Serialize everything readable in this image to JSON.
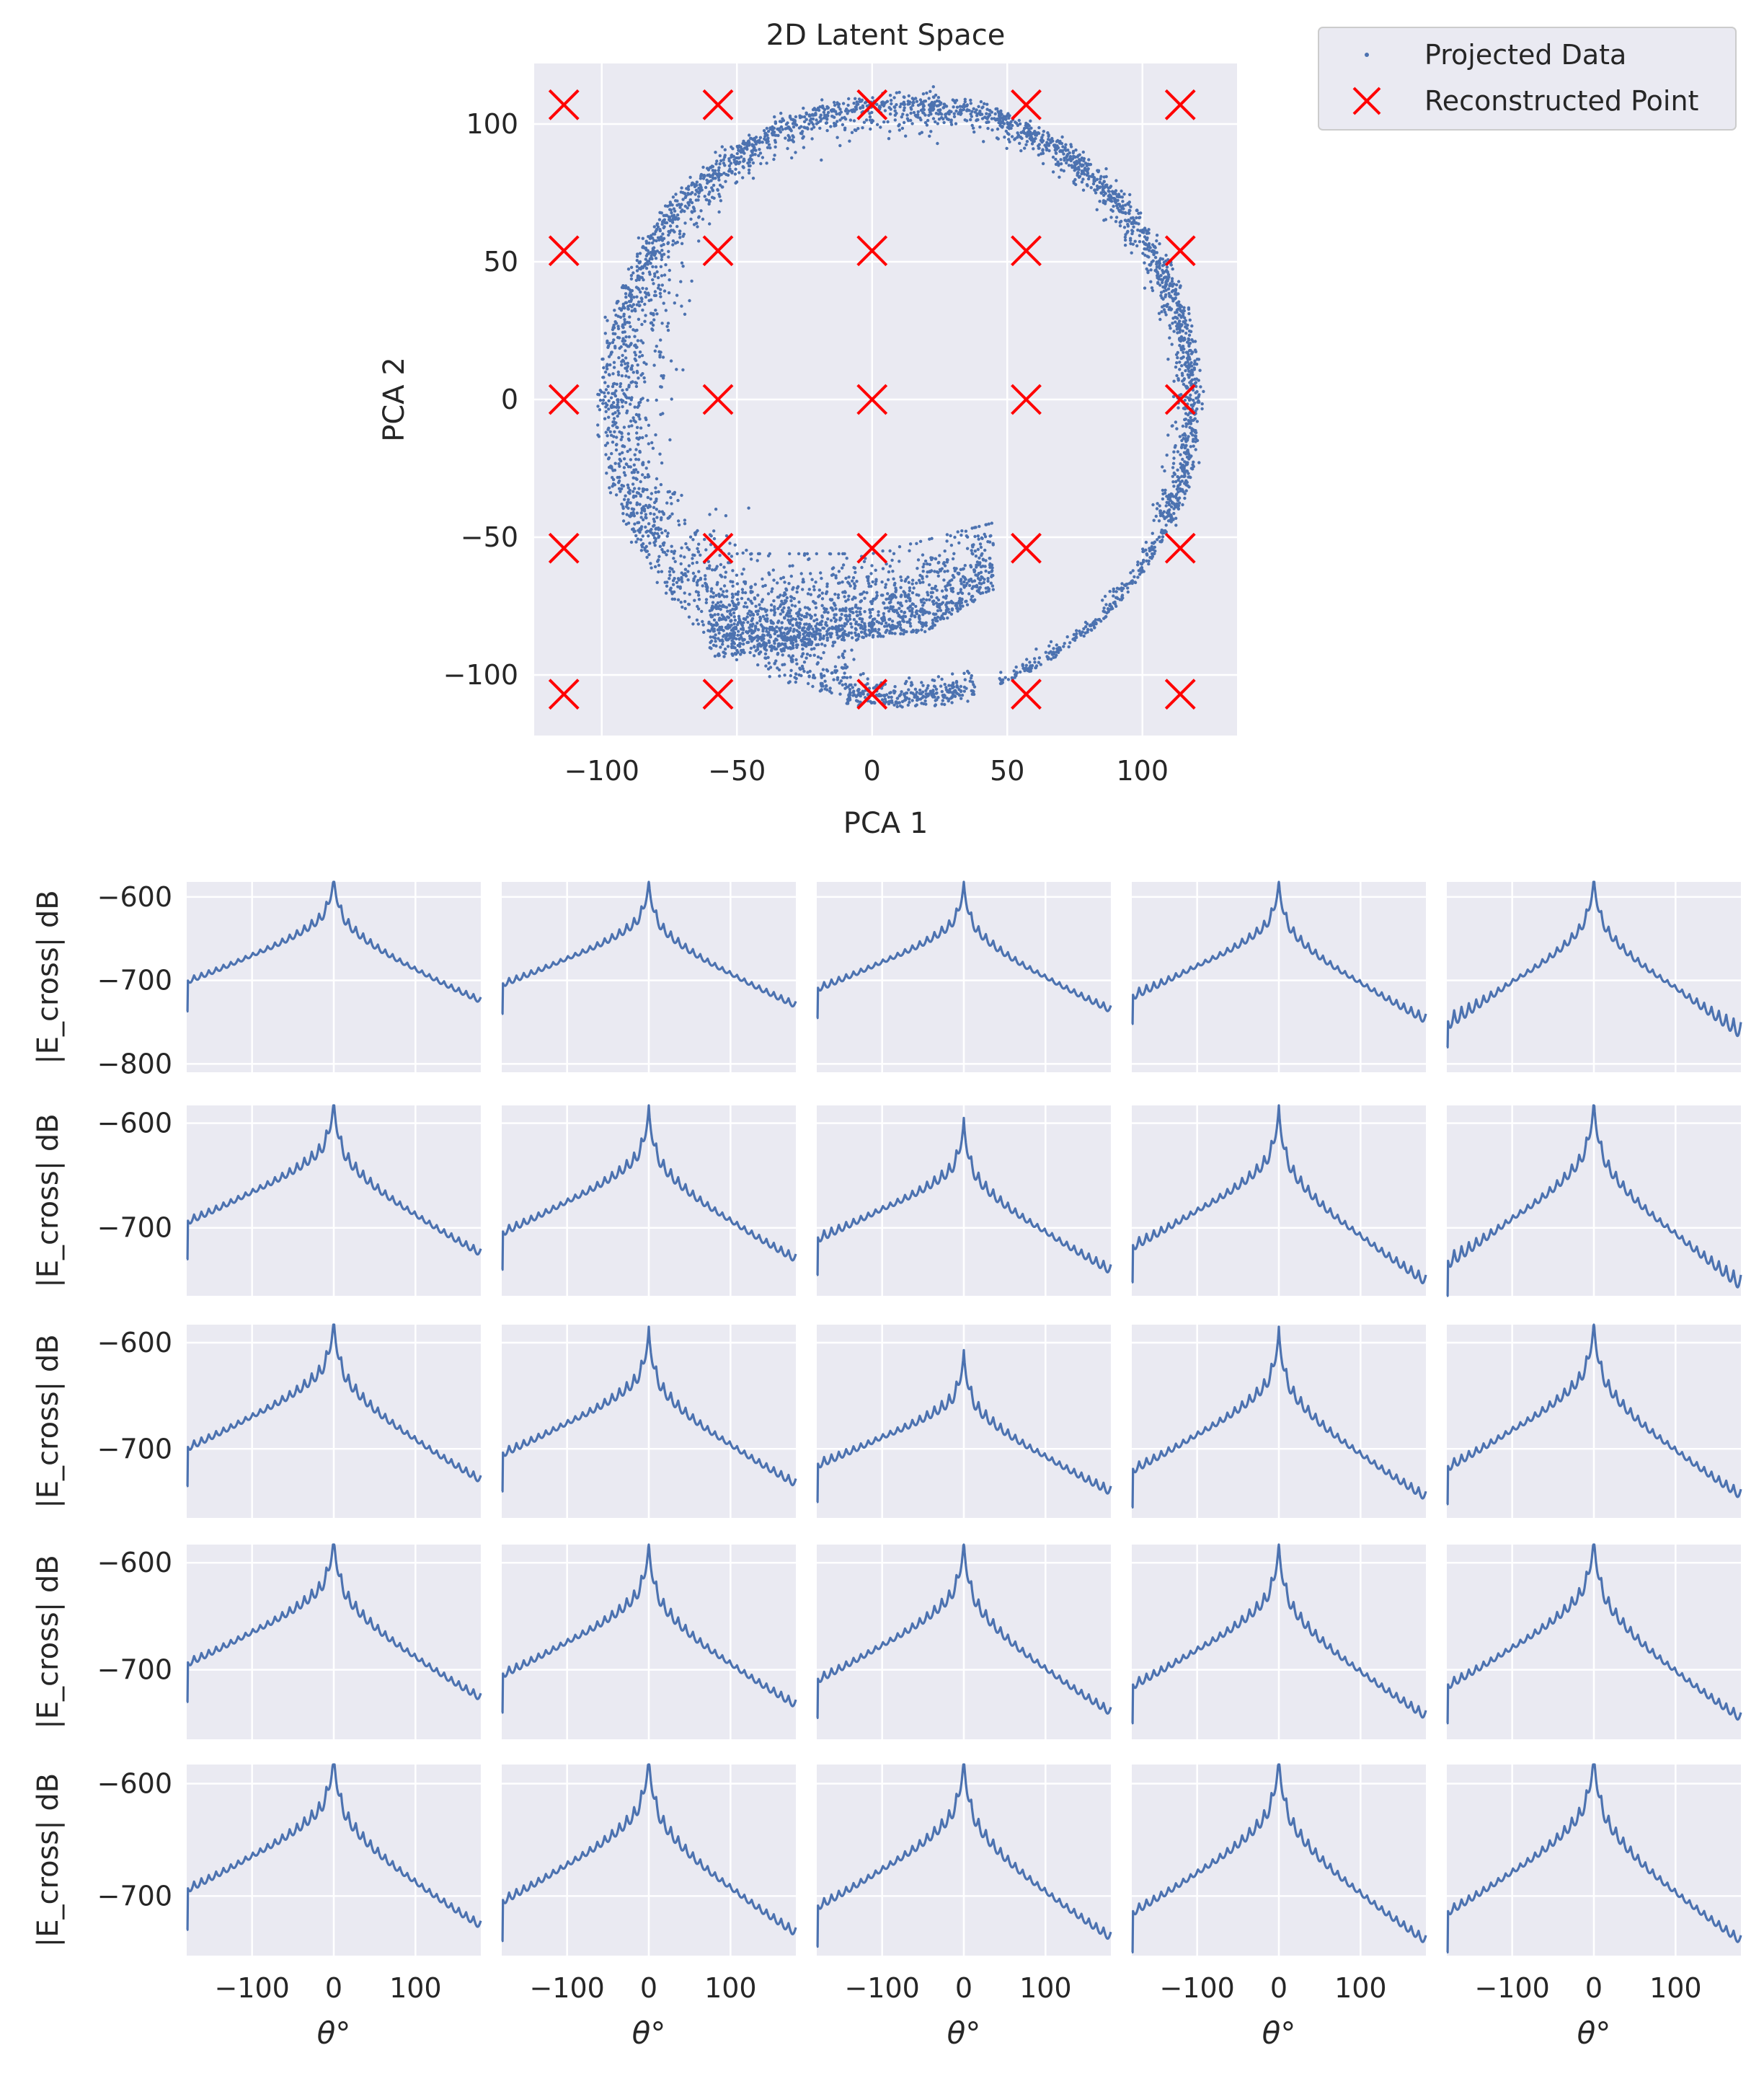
{
  "chart_data": [
    {
      "type": "scatter",
      "title": "2D Latent Space",
      "xlabel": "PCA 1",
      "ylabel": "PCA 2",
      "xlim": [
        -125,
        135
      ],
      "ylim": [
        -122,
        122
      ],
      "xticks": [
        -100,
        -50,
        0,
        50,
        100
      ],
      "yticks": [
        -100,
        -50,
        0,
        50,
        100
      ],
      "xtick_labels": [
        "−100",
        "−50",
        "0",
        "50",
        "100"
      ],
      "ytick_labels": [
        "−100",
        "−50",
        "0",
        "50",
        "100"
      ],
      "grid": true,
      "legend_placement": "outside-top-right",
      "series": [
        {
          "name": "Projected Data",
          "marker": "dot",
          "color": "#4c72b0",
          "shape": {
            "description": "points scattered along a ring of radius ~110 centered near (10,0), dense cluster near (-20,-85), gap between angles ~-70° and ~-20° except a thin tail reaching ~(35,-110)",
            "ring_center": [
              10,
              0
            ],
            "ring_radius": 110
          }
        },
        {
          "name": "Reconstructed Point",
          "marker": "x",
          "color": "#ff0000",
          "points": [
            [
              -114,
              107
            ],
            [
              -57,
              107
            ],
            [
              0,
              107
            ],
            [
              57,
              107
            ],
            [
              114,
              107
            ],
            [
              -114,
              54
            ],
            [
              -57,
              54
            ],
            [
              0,
              54
            ],
            [
              57,
              54
            ],
            [
              114,
              54
            ],
            [
              -114,
              0
            ],
            [
              -57,
              0
            ],
            [
              0,
              0
            ],
            [
              57,
              0
            ],
            [
              114,
              0
            ],
            [
              -114,
              -54
            ],
            [
              -57,
              -54
            ],
            [
              0,
              -54
            ],
            [
              57,
              -54
            ],
            [
              114,
              -54
            ],
            [
              -114,
              -107
            ],
            [
              -57,
              -107
            ],
            [
              0,
              -107
            ],
            [
              57,
              -107
            ],
            [
              114,
              -107
            ]
          ]
        }
      ]
    },
    {
      "type": "line",
      "layout": "5x5 grid of small multiples",
      "xlabel": "θ°",
      "ylabel": "|E_cross| dB",
      "xlim": [
        -180,
        180
      ],
      "xticks": [
        -100,
        0,
        100
      ],
      "xtick_labels": [
        "−100",
        "0",
        "100"
      ],
      "color": "#4c72b0",
      "rows": [
        {
          "ylim": [
            -810,
            -582
          ],
          "yticks": [
            -600,
            -700,
            -800
          ],
          "ytick_labels": [
            "−600",
            "−700",
            "−800"
          ],
          "panels": [
            {
              "peak": -590,
              "edge_left": -697,
              "edge_right": -720,
              "noise": 8
            },
            {
              "peak": -596,
              "edge_left": -700,
              "edge_right": -725,
              "noise": 9
            },
            {
              "peak": -598,
              "edge_left": -705,
              "edge_right": -730,
              "noise": 10
            },
            {
              "peak": -596,
              "edge_left": -712,
              "edge_right": -740,
              "noise": 14
            },
            {
              "peak": -591,
              "edge_left": -740,
              "edge_right": -750,
              "noise": 25
            }
          ]
        },
        {
          "ylim": [
            -765,
            -583
          ],
          "yticks": [
            -600,
            -700
          ],
          "ytick_labels": [
            "−600",
            "−700"
          ],
          "panels": [
            {
              "peak": -593,
              "edge_left": -690,
              "edge_right": -720,
              "noise": 8
            },
            {
              "peak": -600,
              "edge_left": -700,
              "edge_right": -725,
              "noise": 9
            },
            {
              "peak": -613,
              "edge_left": -705,
              "edge_right": -735,
              "noise": 11
            },
            {
              "peak": -600,
              "edge_left": -712,
              "edge_right": -745,
              "noise": 12
            },
            {
              "peak": -593,
              "edge_left": -725,
              "edge_right": -745,
              "noise": 18
            }
          ]
        },
        {
          "ylim": [
            -765,
            -583
          ],
          "yticks": [
            -600,
            -700
          ],
          "ytick_labels": [
            "−600",
            "−700"
          ],
          "panels": [
            {
              "peak": -593,
              "edge_left": -695,
              "edge_right": -725,
              "noise": 8
            },
            {
              "peak": -603,
              "edge_left": -700,
              "edge_right": -728,
              "noise": 9
            },
            {
              "peak": -625,
              "edge_left": -710,
              "edge_right": -735,
              "noise": 10
            },
            {
              "peak": -603,
              "edge_left": -715,
              "edge_right": -740,
              "noise": 10
            },
            {
              "peak": -595,
              "edge_left": -712,
              "edge_right": -738,
              "noise": 11
            }
          ]
        },
        {
          "ylim": [
            -765,
            -583
          ],
          "yticks": [
            -600,
            -700
          ],
          "ytick_labels": [
            "−600",
            "−700"
          ],
          "panels": [
            {
              "peak": -590,
              "edge_left": -690,
              "edge_right": -722,
              "noise": 8
            },
            {
              "peak": -597,
              "edge_left": -700,
              "edge_right": -728,
              "noise": 9
            },
            {
              "peak": -595,
              "edge_left": -705,
              "edge_right": -735,
              "noise": 9
            },
            {
              "peak": -597,
              "edge_left": -710,
              "edge_right": -738,
              "noise": 10
            },
            {
              "peak": -590,
              "edge_left": -710,
              "edge_right": -740,
              "noise": 10
            }
          ]
        },
        {
          "ylim": [
            -753,
            -583
          ],
          "yticks": [
            -600,
            -700
          ],
          "ytick_labels": [
            "−600",
            "−700"
          ],
          "panels": [
            {
              "peak": -588,
              "edge_left": -690,
              "edge_right": -722,
              "noise": 8
            },
            {
              "peak": -590,
              "edge_left": -700,
              "edge_right": -728,
              "noise": 9
            },
            {
              "peak": -592,
              "edge_left": -705,
              "edge_right": -732,
              "noise": 9
            },
            {
              "peak": -590,
              "edge_left": -710,
              "edge_right": -735,
              "noise": 9
            },
            {
              "peak": -587,
              "edge_left": -710,
              "edge_right": -735,
              "noise": 9
            }
          ]
        }
      ]
    }
  ]
}
